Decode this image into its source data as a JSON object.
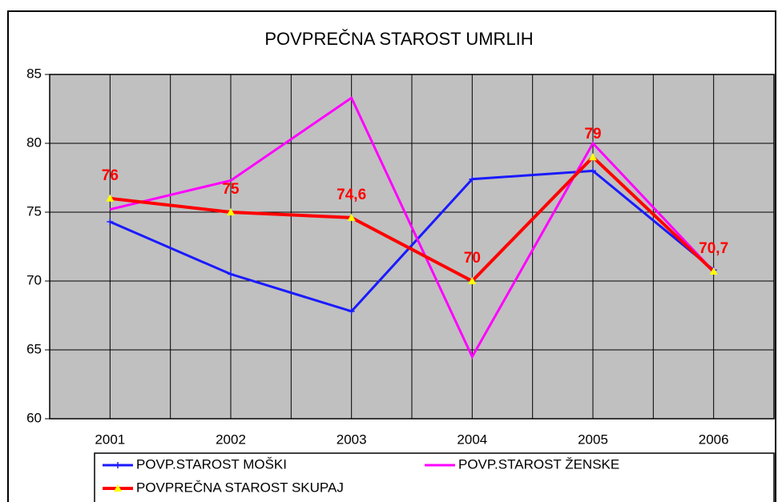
{
  "chart_data": {
    "type": "line",
    "title": "POVPREČNA STAROST UMRLIH",
    "categories": [
      "2001",
      "2002",
      "2003",
      "2004",
      "2005",
      "2006"
    ],
    "series": [
      {
        "name": "POVP.STAROST MOŠKI",
        "color": "#1a1aff",
        "marker": "plus",
        "values": [
          74.3,
          70.5,
          67.8,
          77.4,
          78.0,
          70.8
        ]
      },
      {
        "name": "POVP.STAROST ŽENSKE",
        "color": "#ff00ff",
        "marker": "none",
        "values": [
          75.2,
          77.3,
          83.3,
          64.5,
          80.0,
          70.7
        ]
      },
      {
        "name": "POVPREČNA STAROST SKUPAJ",
        "color": "#ff0000",
        "marker": "triangle",
        "marker_color": "#ffff00",
        "values": [
          76,
          75,
          74.6,
          70,
          79,
          70.7
        ],
        "value_labels": [
          "76",
          "75",
          "74,6",
          "70",
          "79",
          "70,7"
        ]
      }
    ],
    "ylim": [
      60,
      85
    ],
    "yticks": [
      60,
      65,
      70,
      75,
      80,
      85
    ],
    "grid": true,
    "plot_background": "#c0c0c0",
    "legend": "bottom"
  }
}
